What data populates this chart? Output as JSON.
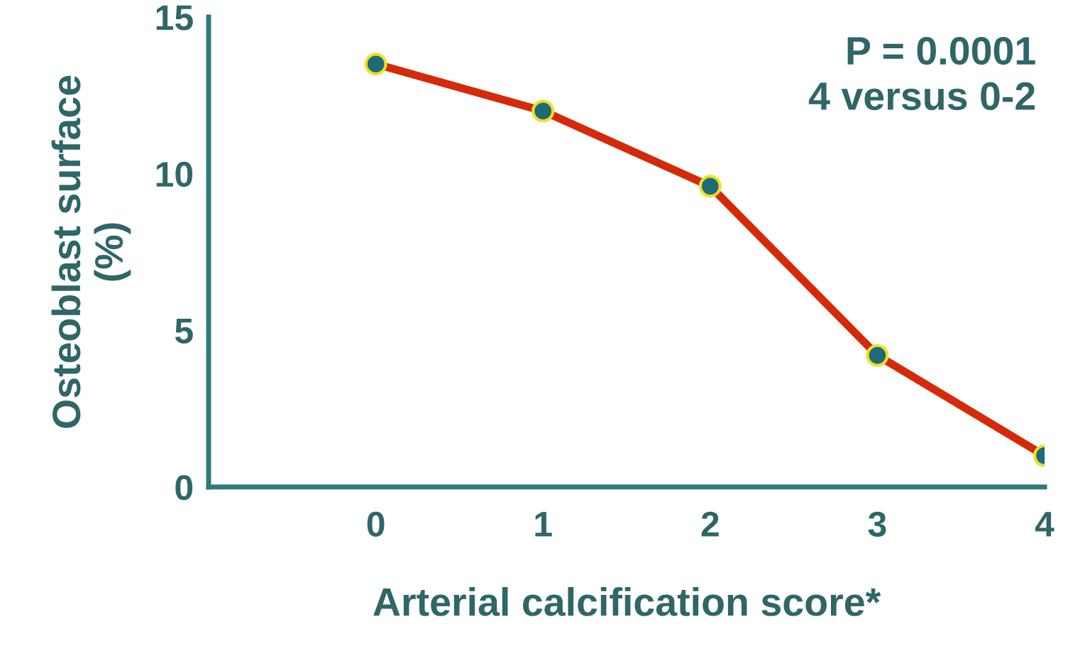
{
  "chart_data": {
    "type": "line",
    "xlabel": "Arterial calcification score*",
    "ylabel": "Osteoblast surface\n(%)",
    "x": [
      0,
      1,
      2,
      3,
      4
    ],
    "series": [
      {
        "color": "#d42a0a",
        "values": [
          13.5,
          12.0,
          9.6,
          4.2,
          1.0
        ]
      }
    ],
    "marker": "circle",
    "line_style": "solid",
    "xlim": [
      -1,
      4
    ],
    "xticks": [
      0,
      1,
      2,
      3,
      4
    ],
    "ylim": [
      0,
      15
    ],
    "yticks": [
      0,
      5,
      10,
      15
    ],
    "grid": false,
    "legend": false,
    "annotations": [
      "P = 0.0001\n4 versus 0-2"
    ]
  }
}
